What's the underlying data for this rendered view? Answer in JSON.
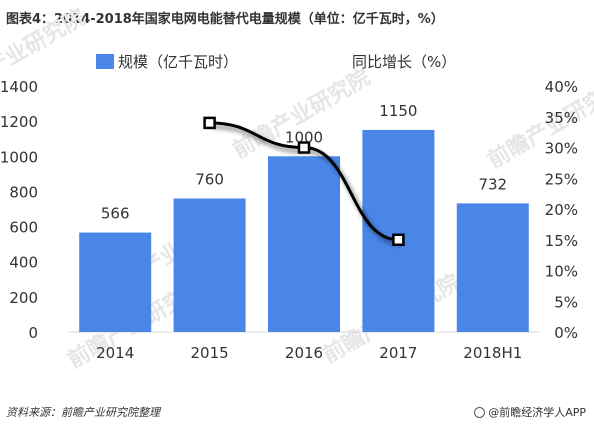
{
  "title": "图表4：2014-2018年国家电网电能替代电量规模（单位：亿千瓦时，%）",
  "source": "资料来源：前瞻产业研究院整理",
  "brand": "@前瞻经济学人APP",
  "watermark": "前瞻产业研究院",
  "colors": {
    "bar": "#4a86e8",
    "line": "#000000",
    "marker": "#ffffff",
    "grid": "#d9d9d9",
    "text": "#333333",
    "watermark": "#e6e6e6"
  },
  "chart_data": {
    "type": "bar",
    "categories": [
      "2014",
      "2015",
      "2016",
      "2017",
      "2018H1"
    ],
    "series": [
      {
        "name": "规模（亿千瓦时）",
        "type": "bar",
        "axis": "left",
        "values": [
          566,
          760,
          1000,
          1150,
          732
        ],
        "labels": [
          "566",
          "760",
          "1000",
          "1150",
          "732"
        ]
      },
      {
        "name": "同比增长（%）",
        "type": "line",
        "axis": "right",
        "values": [
          null,
          34,
          30,
          15,
          null
        ]
      }
    ],
    "y_left": {
      "ticks": [
        "0",
        "200",
        "400",
        "600",
        "800",
        "1000",
        "1200",
        "1400"
      ],
      "min": 0,
      "max": 1400
    },
    "y_right": {
      "ticks": [
        "0%",
        "5%",
        "10%",
        "15%",
        "20%",
        "25%",
        "30%",
        "35%",
        "40%"
      ],
      "min": 0,
      "max": 40
    },
    "legend_position": "top"
  }
}
